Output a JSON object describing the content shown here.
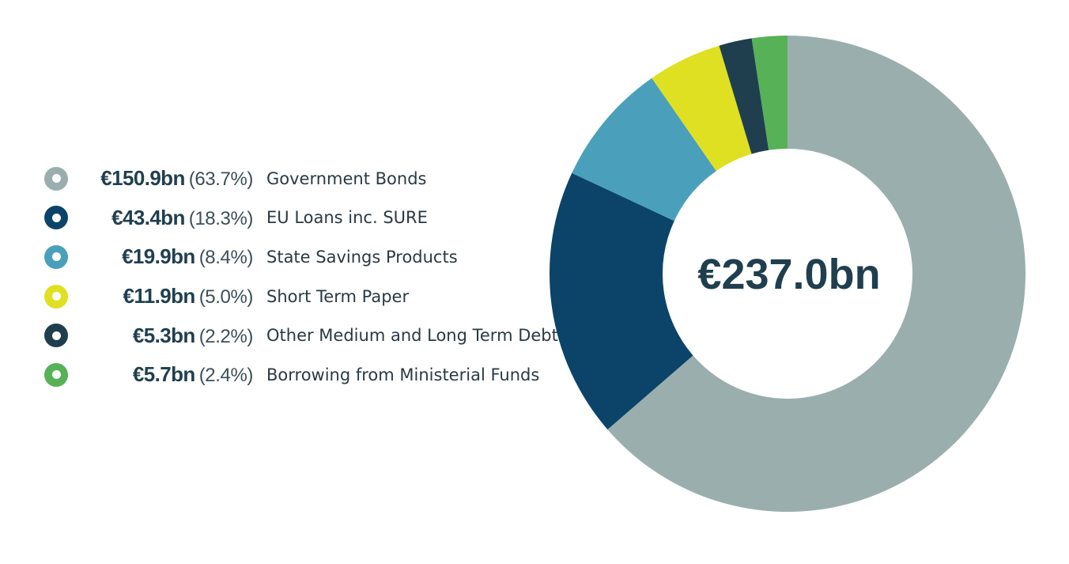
{
  "chart_data": {
    "type": "pie",
    "total_label": "€237.0bn",
    "series": [
      {
        "name": "Government Bonds",
        "value_label": "€150.9bn",
        "pct_label": "(63.7%)",
        "value": 150.9,
        "pct": 63.7,
        "color": "#9aaeae"
      },
      {
        "name": "EU Loans inc. SURE",
        "value_label": "€43.4bn",
        "pct_label": "(18.3%)",
        "value": 43.4,
        "pct": 18.3,
        "color": "#0b4468"
      },
      {
        "name": "State Savings Products",
        "value_label": "€19.9bn",
        "pct_label": "(8.4%)",
        "value": 19.9,
        "pct": 8.4,
        "color": "#4aa0ba"
      },
      {
        "name": "Short Term Paper",
        "value_label": "€11.9bn",
        "pct_label": "(5.0%)",
        "value": 11.9,
        "pct": 5.0,
        "color": "#dfe021"
      },
      {
        "name": "Other Medium and Long Term Debt",
        "value_label": "€5.3bn",
        "pct_label": "(2.2%)",
        "value": 5.3,
        "pct": 2.2,
        "color": "#1f3f4f"
      },
      {
        "name": "Borrowing from Ministerial Funds",
        "value_label": "€5.7bn",
        "pct_label": "(2.4%)",
        "value": 5.7,
        "pct": 2.4,
        "color": "#56b157"
      }
    ]
  }
}
